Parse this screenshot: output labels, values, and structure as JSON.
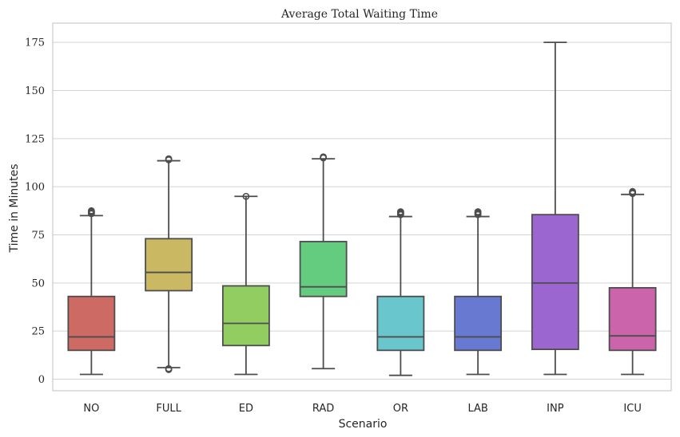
{
  "chart_data": {
    "type": "box",
    "title": "Average Total Waiting Time",
    "xlabel": "Scenario",
    "ylabel": "Time in Minutes",
    "ylim": [
      -6,
      185
    ],
    "yticks": [
      0,
      25,
      50,
      75,
      100,
      125,
      150,
      175
    ],
    "grid": "horizontal",
    "categories": [
      "NO",
      "FULL",
      "ED",
      "RAD",
      "OR",
      "LAB",
      "INP",
      "ICU"
    ],
    "colors": [
      "#cd6a64",
      "#cbb862",
      "#91cd60",
      "#63cc7e",
      "#68c6cc",
      "#6779d0",
      "#9c66d0",
      "#cc64ac"
    ],
    "boxes": [
      {
        "min": 2.5,
        "q1": 15,
        "median": 22,
        "q3": 43,
        "max": 85,
        "outliers": [
          86,
          86.5,
          87,
          87.5
        ]
      },
      {
        "min": 6,
        "q1": 46,
        "median": 55.5,
        "q3": 73,
        "max": 113.5,
        "outliers": [
          5,
          5.5,
          114,
          114.5
        ]
      },
      {
        "min": 2.5,
        "q1": 17.5,
        "median": 29,
        "q3": 48.5,
        "max": 95,
        "outliers": [
          95
        ]
      },
      {
        "min": 5.5,
        "q1": 43,
        "median": 48,
        "q3": 71.5,
        "max": 114.5,
        "outliers": [
          115,
          115.5
        ]
      },
      {
        "min": 2,
        "q1": 15,
        "median": 22,
        "q3": 43,
        "max": 84.5,
        "outliers": [
          85.5,
          86,
          86.5,
          87
        ]
      },
      {
        "min": 2.5,
        "q1": 15,
        "median": 22,
        "q3": 43,
        "max": 84.5,
        "outliers": [
          85.5,
          86,
          86.5,
          87
        ]
      },
      {
        "min": 2.5,
        "q1": 15.5,
        "median": 50,
        "q3": 85.5,
        "max": 175,
        "outliers": []
      },
      {
        "min": 2.5,
        "q1": 15,
        "median": 22.5,
        "q3": 47.5,
        "max": 96,
        "outliers": [
          96.5,
          97,
          97.5
        ]
      }
    ]
  }
}
